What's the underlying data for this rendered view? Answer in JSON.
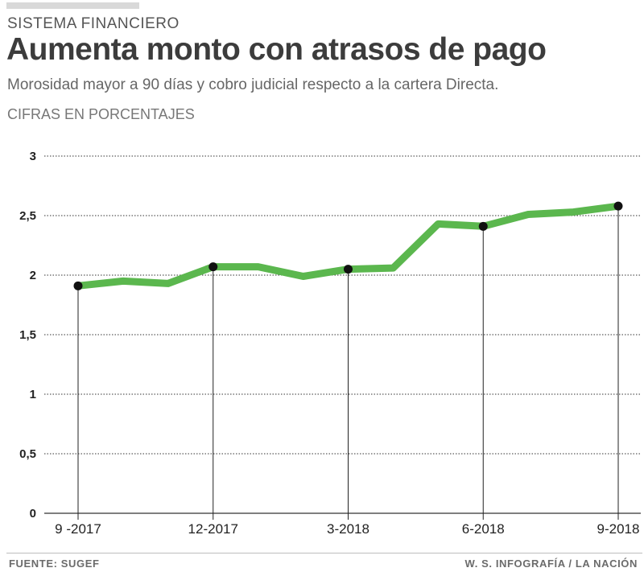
{
  "header": {
    "kicker": "SISTEMA FINANCIERO",
    "title": "Aumenta monto con atrasos de pago",
    "subtitle": "Morosidad mayor a 90 días y cobro judicial respecto a la cartera Directa.",
    "units": "CIFRAS EN PORCENTAJES"
  },
  "footer": {
    "source": "FUENTE: SUGEF",
    "credit": "W. S. INFOGRAFÍA / LA NACIÓN"
  },
  "colors": {
    "line": "#5bb74e",
    "marker": "#111111",
    "grid": "#333333",
    "text": "#222222"
  },
  "chart_data": {
    "type": "line",
    "title": "Aumenta monto con atrasos de pago",
    "ylabel": "",
    "xlabel": "",
    "ylim": [
      0,
      3
    ],
    "yticks": [
      "0",
      "0,5",
      "1",
      "1,5",
      "2",
      "2,5",
      "3"
    ],
    "ytick_values": [
      0,
      0.5,
      1,
      1.5,
      2,
      2.5,
      3
    ],
    "grid": true,
    "x": [
      "9-2017",
      "10-2017",
      "11-2017",
      "12-2017",
      "1-2018",
      "2-2018",
      "3-2018",
      "4-2018",
      "5-2018",
      "6-2018",
      "7-2018",
      "8-2018",
      "9-2018"
    ],
    "series": [
      {
        "values": [
          1.91,
          1.95,
          1.93,
          2.07,
          2.07,
          1.99,
          2.05,
          2.06,
          2.43,
          2.41,
          2.51,
          2.53,
          2.58
        ]
      }
    ],
    "highlighted_points": [
      0,
      3,
      6,
      9,
      12
    ],
    "xtick_labels": [
      "9 -2017",
      "12-2017",
      "3-2018",
      "6-2018",
      "9-2018"
    ]
  }
}
